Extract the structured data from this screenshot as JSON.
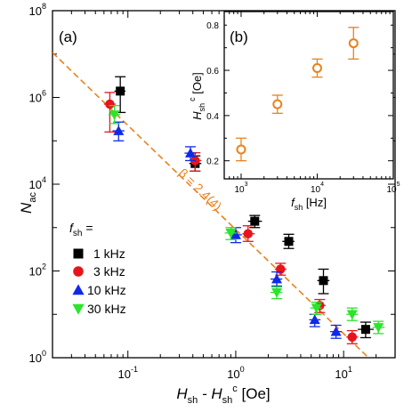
{
  "chart_data": [
    {
      "panel_label": "(a)",
      "type": "scatter",
      "xscale": "log",
      "yscale": "log",
      "xlim": [
        0.02,
        30
      ],
      "ylim": [
        1,
        100000000
      ],
      "xlabel": {
        "main": "H",
        "sub1": "sh",
        "mid": " - H",
        "sub2": "sh",
        "sup2": "c",
        "unit": " [Oe]"
      },
      "ylabel": {
        "main": "N",
        "sub": "ac"
      },
      "x_tick_labels": [
        {
          "base": "10",
          "exp": "-1",
          "value": 0.1
        },
        {
          "base": "10",
          "exp": "0",
          "value": 1
        },
        {
          "base": "10",
          "exp": "1",
          "value": 10
        }
      ],
      "y_tick_labels": [
        {
          "base": "10",
          "exp": "0",
          "value": 1
        },
        {
          "base": "10",
          "exp": "2",
          "value": 100
        },
        {
          "base": "10",
          "exp": "4",
          "value": 10000
        },
        {
          "base": "10",
          "exp": "6",
          "value": 1000000
        },
        {
          "base": "10",
          "exp": "8",
          "value": 100000000
        }
      ],
      "legend": {
        "title_main": "f",
        "title_sub": "sh",
        "title_suffix": " =",
        "placement": "bottom-left"
      },
      "fit_line": {
        "label": "β = 2.4(4)",
        "exponent": 2.4,
        "x": [
          0.02,
          17
        ],
        "y": [
          10800000,
          1
        ],
        "color": "#E8821E",
        "dashed": true
      },
      "series": [
        {
          "name": "1 kHz",
          "marker": "square",
          "color": "#000000",
          "points": [
            {
              "x": 0.085,
              "y": 1400000,
              "ylo": 450000,
              "yhi": 3000000,
              "xlo": 0.075,
              "xhi": 0.095
            },
            {
              "x": 0.42,
              "y": 30000,
              "ylo": 20000,
              "yhi": 45000,
              "xlo": 0.37,
              "xhi": 0.48
            },
            {
              "x": 1.5,
              "y": 1400,
              "ylo": 1000,
              "yhi": 1900,
              "xlo": 1.3,
              "xhi": 1.75
            },
            {
              "x": 3.1,
              "y": 480,
              "ylo": 330,
              "yhi": 700,
              "xlo": 2.7,
              "xhi": 3.5
            },
            {
              "x": 6.5,
              "y": 60,
              "ylo": 30,
              "yhi": 110,
              "xlo": 5.7,
              "xhi": 7.4
            },
            {
              "x": 16,
              "y": 4.5,
              "ylo": 2.9,
              "yhi": 6.6,
              "xlo": 13.5,
              "xhi": 19
            }
          ]
        },
        {
          "name": "3 kHz",
          "marker": "circle",
          "color": "#E8141B",
          "points": [
            {
              "x": 0.068,
              "y": 700000,
              "ylo": 160000,
              "yhi": 1300000,
              "xlo": 0.06,
              "xhi": 0.077
            },
            {
              "x": 0.42,
              "y": 35000,
              "ylo": 20000,
              "yhi": 53000,
              "xlo": 0.37,
              "xhi": 0.48
            },
            {
              "x": 1.3,
              "y": 720,
              "ylo": 480,
              "yhi": 1100,
              "xlo": 1.15,
              "xhi": 1.5
            },
            {
              "x": 2.6,
              "y": 110,
              "ylo": 80,
              "yhi": 150,
              "xlo": 2.3,
              "xhi": 2.95
            },
            {
              "x": 6.0,
              "y": 16,
              "ylo": 11,
              "yhi": 22,
              "xlo": 5.3,
              "xhi": 6.8
            },
            {
              "x": 12,
              "y": 3,
              "ylo": 2.1,
              "yhi": 4.2,
              "xlo": 10.6,
              "xhi": 13.6
            }
          ]
        },
        {
          "name": "10 kHz",
          "marker": "triangle-up",
          "color": "#1029E8",
          "points": [
            {
              "x": 0.082,
              "y": 170000,
              "ylo": 100000,
              "yhi": 270000,
              "xlo": 0.072,
              "xhi": 0.093
            },
            {
              "x": 0.38,
              "y": 52000,
              "ylo": 35000,
              "yhi": 73000,
              "xlo": 0.335,
              "xhi": 0.43
            },
            {
              "x": 1.0,
              "y": 680,
              "ylo": 450,
              "yhi": 1000,
              "xlo": 0.88,
              "xhi": 1.14
            },
            {
              "x": 2.4,
              "y": 65,
              "ylo": 45,
              "yhi": 95,
              "xlo": 2.1,
              "xhi": 2.7
            },
            {
              "x": 5.4,
              "y": 7.5,
              "ylo": 5.2,
              "yhi": 10,
              "xlo": 4.8,
              "xhi": 6.1
            },
            {
              "x": 8.5,
              "y": 4,
              "ylo": 2.8,
              "yhi": 5.6,
              "xlo": 7.5,
              "xhi": 9.6
            }
          ]
        },
        {
          "name": "30 kHz",
          "marker": "triangle-down",
          "color": "#2BE42B",
          "points": [
            {
              "x": 0.075,
              "y": 400000,
              "ylo": 250000,
              "yhi": 650000,
              "xlo": 0.066,
              "xhi": 0.085
            },
            {
              "x": 0.9,
              "y": 750,
              "ylo": 530,
              "yhi": 1000,
              "xlo": 0.79,
              "xhi": 1.02
            },
            {
              "x": 2.4,
              "y": 32,
              "ylo": 23,
              "yhi": 43,
              "xlo": 2.1,
              "xhi": 2.7
            },
            {
              "x": 5.6,
              "y": 14,
              "ylo": 10,
              "yhi": 19,
              "xlo": 4.9,
              "xhi": 6.3
            },
            {
              "x": 12,
              "y": 10,
              "ylo": 7.2,
              "yhi": 14,
              "xlo": 10.6,
              "xhi": 13.6
            },
            {
              "x": 21,
              "y": 5,
              "ylo": 3.6,
              "yhi": 6.9,
              "xlo": 18.5,
              "xhi": 24
            }
          ]
        }
      ]
    },
    {
      "panel_label": "(b)",
      "type": "scatter",
      "xscale": "log",
      "xlim": [
        600,
        100000
      ],
      "ylim": [
        0.12,
        0.86
      ],
      "xlabel": {
        "main": "f",
        "sub": "sh",
        "unit": " [Hz]"
      },
      "ylabel": {
        "main": "H",
        "sub": "sh",
        "sup": "c",
        "unit": " [Oe]"
      },
      "x_tick_labels": [
        {
          "base": "10",
          "exp": "3",
          "value": 1000
        },
        {
          "base": "10",
          "exp": "4",
          "value": 10000
        },
        {
          "base": "10",
          "exp": "5",
          "value": 100000
        }
      ],
      "y_ticks": [
        0.2,
        0.4,
        0.6,
        0.8
      ],
      "y_tick_labels": [
        "0.2",
        "0.4",
        "0.6",
        "0.8"
      ],
      "series": [
        {
          "marker": "open-circle",
          "color": "#E8821E",
          "points": [
            {
              "x": 1000,
              "y": 0.25,
              "err": 0.05
            },
            {
              "x": 3000,
              "y": 0.45,
              "err": 0.04
            },
            {
              "x": 10000,
              "y": 0.61,
              "err": 0.04
            },
            {
              "x": 30000,
              "y": 0.72,
              "err": 0.07
            }
          ]
        }
      ]
    }
  ]
}
